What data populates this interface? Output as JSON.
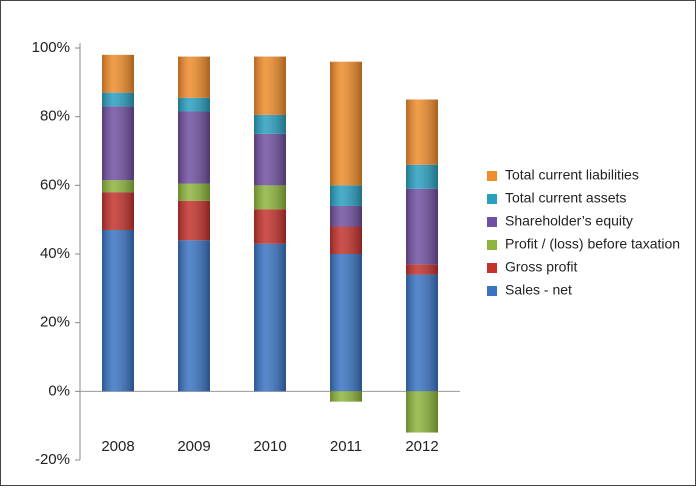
{
  "chart_data": {
    "type": "bar",
    "stacked": true,
    "categories": [
      "2008",
      "2009",
      "2010",
      "2011",
      "2012"
    ],
    "series": [
      {
        "name": "Sales - net",
        "color": "#3a73c2",
        "values": [
          47,
          44,
          43,
          40,
          34
        ]
      },
      {
        "name": "Gross profit",
        "color": "#c3322d",
        "values": [
          11,
          11.5,
          10,
          8,
          3
        ]
      },
      {
        "name": "Profit / (loss) before taxation",
        "color": "#8db43c",
        "values": [
          3.5,
          5,
          7,
          -3,
          -12
        ]
      },
      {
        "name": "Shareholder’s equity",
        "color": "#7050a0",
        "values": [
          21.5,
          21,
          15,
          6,
          22
        ]
      },
      {
        "name": "Total current assets",
        "color": "#2a9fc0",
        "values": [
          4,
          4,
          5.5,
          6,
          7
        ]
      },
      {
        "name": "Total current liabilities",
        "color": "#ef8c2b",
        "values": [
          11,
          12,
          17,
          36,
          19
        ]
      }
    ],
    "ylim": [
      -20,
      100
    ],
    "yticks": [
      {
        "value": -20,
        "label": "-20%"
      },
      {
        "value": 0,
        "label": "0%"
      },
      {
        "value": 20,
        "label": "20%"
      },
      {
        "value": 40,
        "label": "40%"
      },
      {
        "value": 60,
        "label": "60%"
      },
      {
        "value": 80,
        "label": "80%"
      },
      {
        "value": 100,
        "label": "100%"
      }
    ],
    "legend": "right"
  }
}
